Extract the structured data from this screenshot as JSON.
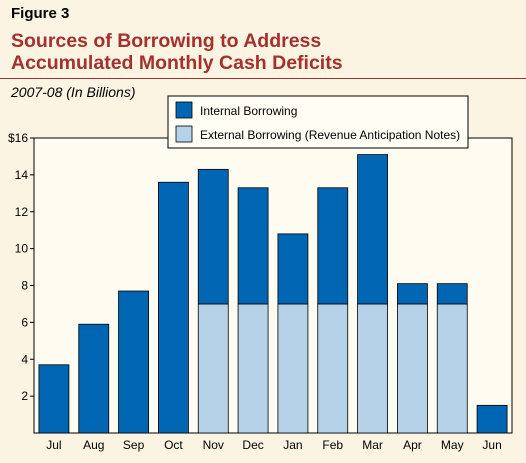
{
  "figure_label": "Figure 3",
  "title_line1": "Sources of Borrowing to Address",
  "title_line2": "Accumulated Monthly Cash Deficits",
  "subtitle": "2007-08 (In Billions)",
  "colors": {
    "background": "#fbf4e2",
    "title": "#a4312d",
    "internal": "#0066b3",
    "external": "#b5d2e9",
    "plot_bg": "#fefbf0"
  },
  "chart_data": {
    "type": "bar",
    "stacked": true,
    "categories": [
      "Jul",
      "Aug",
      "Sep",
      "Oct",
      "Nov",
      "Dec",
      "Jan",
      "Feb",
      "Mar",
      "Apr",
      "May",
      "Jun"
    ],
    "series": [
      {
        "name": "External Borrowing (Revenue Anticipation Notes)",
        "values": [
          0,
          0,
          0,
          0,
          7,
          7,
          7,
          7,
          7,
          7,
          7,
          0
        ]
      },
      {
        "name": "Internal Borrowing",
        "values": [
          3.7,
          5.9,
          7.7,
          13.6,
          7.3,
          6.3,
          3.8,
          6.3,
          8.1,
          1.1,
          1.1,
          1.5
        ]
      }
    ],
    "ylim": [
      0,
      16
    ],
    "yticks": [
      2,
      4,
      6,
      8,
      10,
      12,
      14,
      16
    ],
    "ytick_labels": [
      "2",
      "4",
      "6",
      "8",
      "10",
      "12",
      "14",
      "$16"
    ],
    "grid": false,
    "legend_position": "top-center"
  }
}
